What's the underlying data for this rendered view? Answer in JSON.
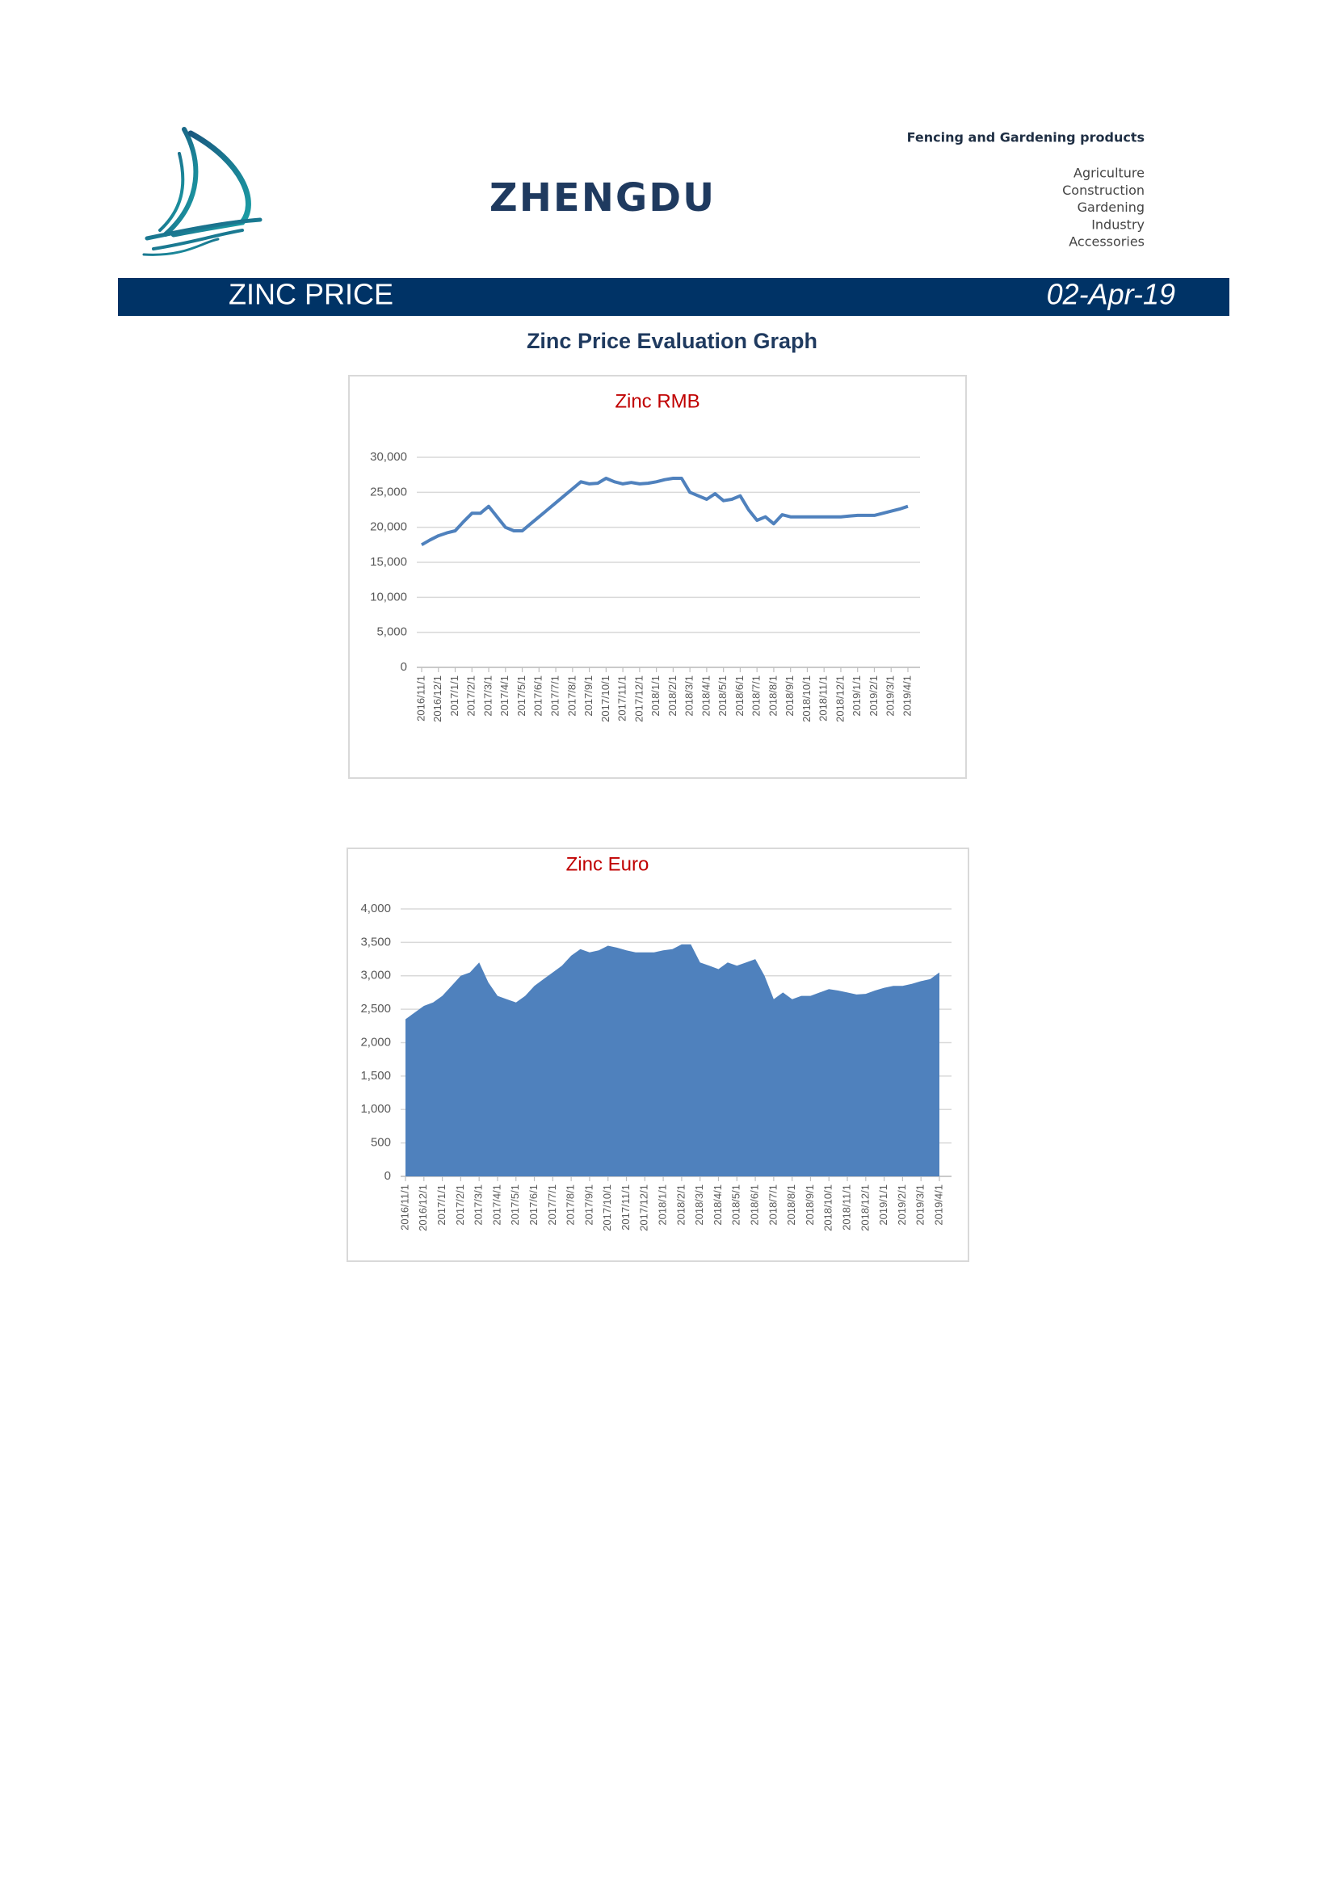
{
  "header": {
    "brand": "ZHENGDU",
    "tagline": "Fencing and Gardening products",
    "sectors": [
      "Agriculture",
      "Construction",
      "Gardening",
      "Industry",
      "Accessories"
    ]
  },
  "banner": {
    "title": "ZINC PRICE",
    "date": "02-Apr-19"
  },
  "heading": "Zinc Price Evaluation Graph",
  "chart_data": [
    {
      "type": "line",
      "title": "Zinc RMB",
      "color": "#4f81bd",
      "grid": true,
      "categories": [
        "2016/11/1",
        null,
        "2016/12/1",
        null,
        "2017/1/1",
        null,
        "2017/2/1",
        null,
        "2017/3/1",
        null,
        "2017/4/1",
        null,
        "2017/5/1",
        null,
        "2017/6/1",
        null,
        "2017/7/1",
        null,
        "2017/8/1",
        null,
        "2017/9/1",
        null,
        "2017/10/1",
        null,
        "2017/11/1",
        null,
        "2017/12/1",
        null,
        "2018/1/1",
        null,
        "2018/2/1",
        null,
        "2018/3/1",
        null,
        "2018/4/1",
        null,
        "2018/5/1",
        null,
        "2018/6/1",
        null,
        "2018/7/1",
        null,
        "2018/8/1",
        null,
        "2018/9/1",
        null,
        "2018/10/1",
        null,
        "2018/11/1",
        null,
        "2018/12/1",
        null,
        "2019/1/1",
        null,
        "2019/2/1",
        null,
        "2019/3/1",
        null,
        "2019/4/1"
      ],
      "values": [
        17500,
        18200,
        18800,
        19200,
        19500,
        20800,
        22000,
        22000,
        23000,
        21500,
        20000,
        19500,
        19500,
        20500,
        21500,
        22500,
        23500,
        24500,
        25500,
        26500,
        26200,
        26300,
        27000,
        26500,
        26200,
        26400,
        26200,
        26300,
        26500,
        26800,
        27000,
        27000,
        25000,
        24500,
        24000,
        24800,
        23800,
        24000,
        24500,
        22500,
        21000,
        21500,
        20500,
        21800,
        21500,
        21500,
        21500,
        21500,
        21500,
        21500,
        21500,
        21600,
        21700,
        21700,
        21700,
        22000,
        22300,
        22600,
        23000
      ],
      "ylim": [
        0,
        30000
      ],
      "yticks": [
        0,
        {
          "value": 5000,
          "label": "5,000"
        },
        {
          "value": 10000,
          "label": "10,000"
        },
        {
          "value": 15000,
          "label": "15,000"
        },
        {
          "value": 20000,
          "label": "20,000"
        },
        {
          "value": 25000,
          "label": "25,000"
        },
        {
          "value": 30000,
          "label": "30,000"
        }
      ]
    },
    {
      "type": "area",
      "title": "Zinc Euro",
      "color": "#4f81bd",
      "grid": true,
      "categories": [
        "2016/11/1",
        null,
        "2016/12/1",
        null,
        "2017/1/1",
        null,
        "2017/2/1",
        null,
        "2017/3/1",
        null,
        "2017/4/1",
        null,
        "2017/5/1",
        null,
        "2017/6/1",
        null,
        "2017/7/1",
        null,
        "2017/8/1",
        null,
        "2017/9/1",
        null,
        "2017/10/1",
        null,
        "2017/11/1",
        null,
        "2017/12/1",
        null,
        "2018/1/1",
        null,
        "2018/2/1",
        null,
        "2018/3/1",
        null,
        "2018/4/1",
        null,
        "2018/5/1",
        null,
        "2018/6/1",
        null,
        "2018/7/1",
        null,
        "2018/8/1",
        null,
        "2018/9/1",
        null,
        "2018/10/1",
        null,
        "2018/11/1",
        null,
        "2018/12/1",
        null,
        "2019/1/1",
        null,
        "2019/2/1",
        null,
        "2019/3/1",
        null,
        "2019/4/1"
      ],
      "values": [
        2350,
        2450,
        2550,
        2600,
        2700,
        2850,
        3000,
        3050,
        3200,
        2900,
        2700,
        2650,
        2600,
        2700,
        2850,
        2950,
        3050,
        3150,
        3300,
        3400,
        3350,
        3380,
        3450,
        3420,
        3380,
        3350,
        3350,
        3350,
        3380,
        3400,
        3470,
        3470,
        3200,
        3150,
        3100,
        3200,
        3150,
        3200,
        3250,
        3000,
        2650,
        2750,
        2650,
        2700,
        2700,
        2750,
        2800,
        2780,
        2750,
        2720,
        2730,
        2780,
        2820,
        2850,
        2850,
        2880,
        2920,
        2950,
        3050
      ],
      "ylim": [
        0,
        4000
      ],
      "yticks": [
        0,
        500,
        {
          "value": 1000,
          "label": "1,000"
        },
        {
          "value": 1500,
          "label": "1,500"
        },
        {
          "value": 2000,
          "label": "2,000"
        },
        {
          "value": 2500,
          "label": "2,500"
        },
        {
          "value": 3000,
          "label": "3,000"
        },
        {
          "value": 3500,
          "label": "3,500"
        },
        {
          "value": 4000,
          "label": "4,000"
        }
      ]
    }
  ]
}
